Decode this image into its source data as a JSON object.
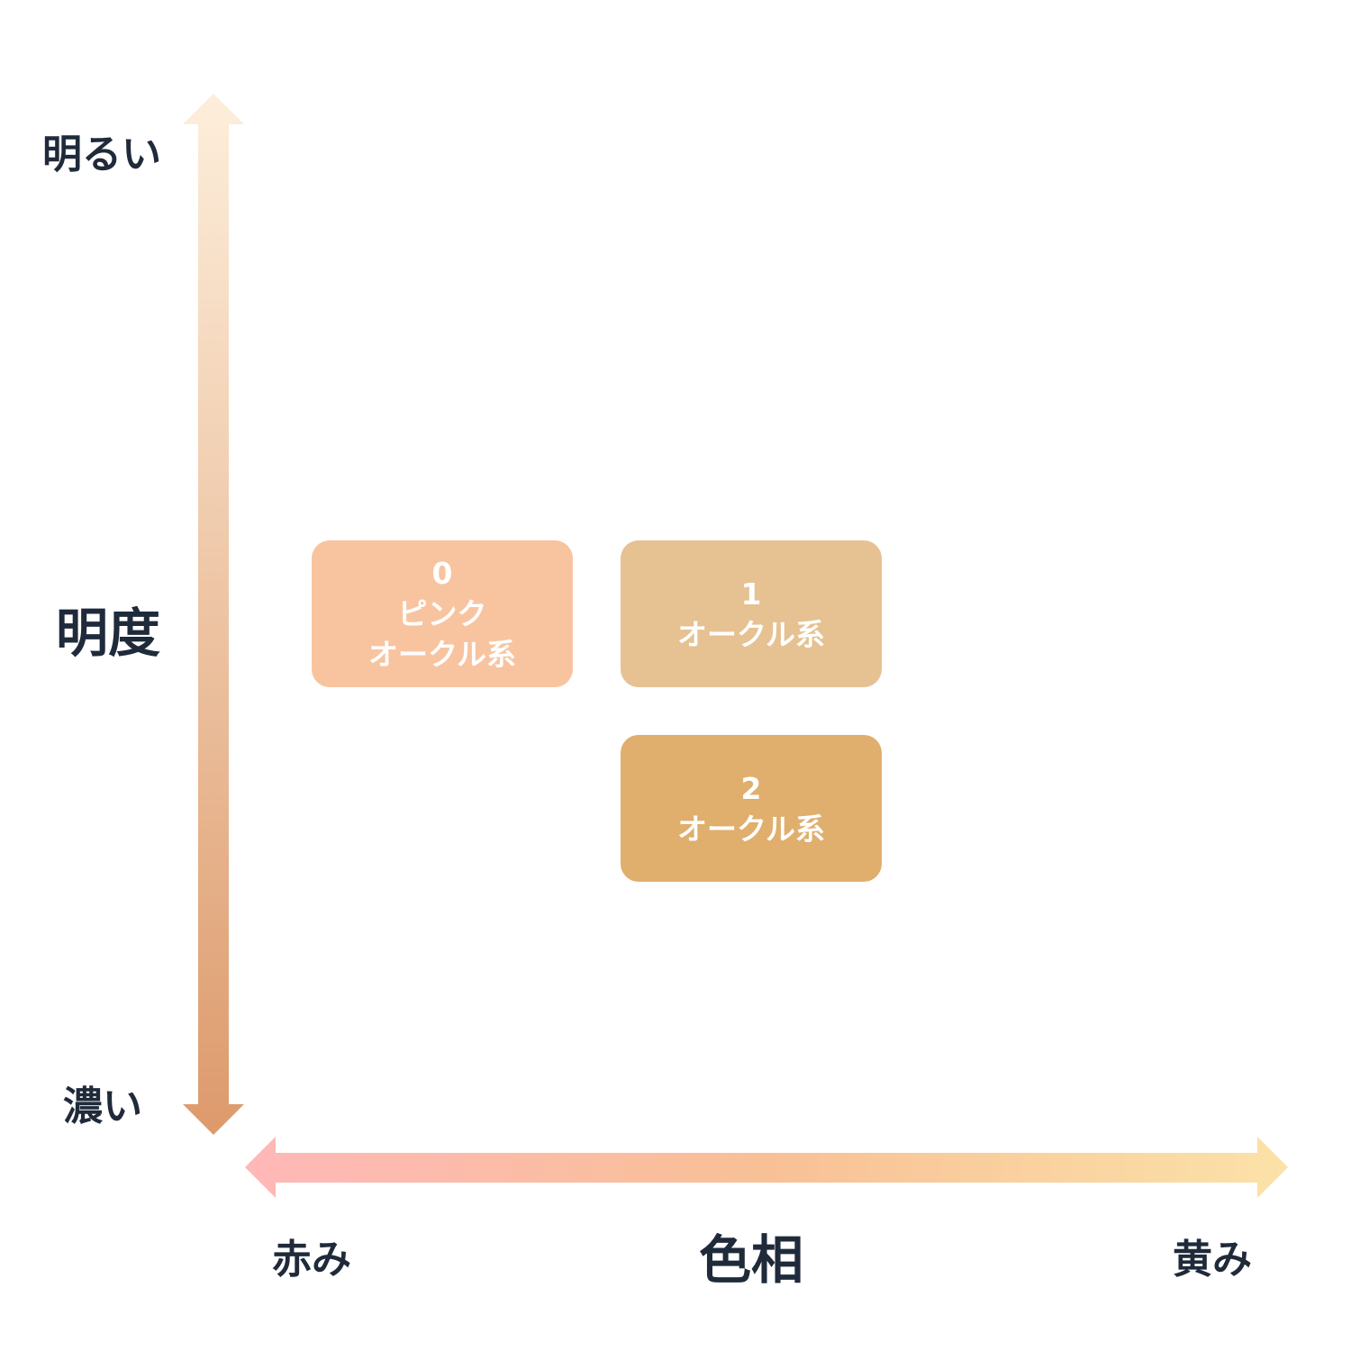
{
  "vertical_axis": {
    "title": "明度",
    "top_label": "明るい",
    "bottom_label": "濃い",
    "gradient": [
      "#fdeedb",
      "#dd9a6c"
    ]
  },
  "horizontal_axis": {
    "title": "色相",
    "left_label": "赤み",
    "right_label": "黄み",
    "gradient": [
      "#ffb8b8",
      "#f8c096",
      "#fbe2a8"
    ]
  },
  "boxes": [
    {
      "number": "0",
      "line1": "ピンク",
      "line2": "オークル系",
      "color": "#f8c49f"
    },
    {
      "number": "1",
      "line1": "オークル系",
      "color": "#e6c192"
    },
    {
      "number": "2",
      "line1": "オークル系",
      "color": "#e0ae6d"
    }
  ]
}
